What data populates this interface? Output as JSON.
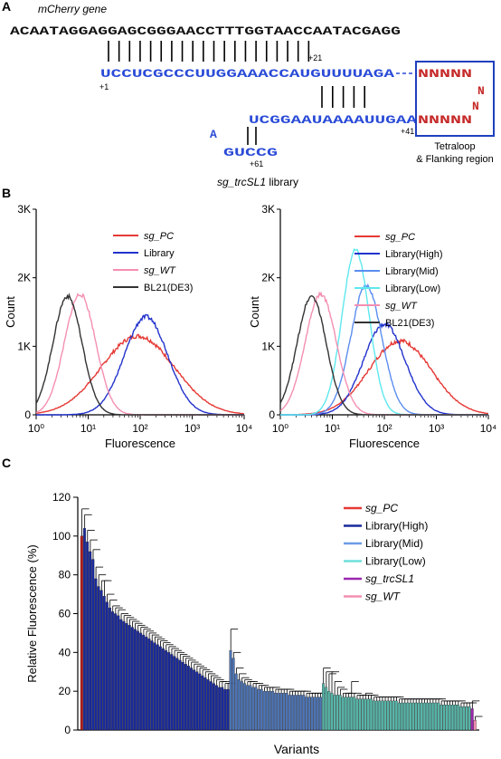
{
  "panel_a": {
    "panel_label": "A",
    "gene_label": "mCherry gene",
    "dna_seq": "ACAATAGGAGGAGCGGGAACCTTTGGTAACCAATACGAGG",
    "rna_top": "UCCUCGCCCUUGGAAACCAUGUUUUAGA",
    "rna_mid": "UCGGAAUAAAAUUGAA",
    "stem_a": "A",
    "stem_bottom": "GUCCG",
    "n_top": "NNNNN",
    "n_mid": "NNNNN",
    "n_vertical": [
      "N",
      "N"
    ],
    "pos_1": "+1",
    "pos_21": "+21",
    "pos_41": "+41",
    "pos_61": "+61",
    "box_label_1": "Tetraloop",
    "box_label_2": "& Flanking region",
    "library_name": "sg_trcSL1",
    "library_suffix": " library",
    "colors": {
      "dna": "#111111",
      "rna": "#2a4bd7",
      "n": "#c62828",
      "box": "#1f3fbf"
    }
  },
  "panel_b": {
    "panel_label": "B",
    "chart_data": [
      {
        "type": "line",
        "x_scale": "log",
        "xlabel": "Fluorescence",
        "ylabel": "Count",
        "xlim": [
          1,
          10000
        ],
        "ylim": [
          0,
          3000
        ],
        "x_ticks": [
          "10⁰",
          "10¹",
          "10²",
          "10³",
          "10⁴"
        ],
        "y_ticks": [
          "0",
          "1K",
          "2K",
          "3K"
        ],
        "legend_position": "top-right",
        "series": [
          {
            "name": "sg_PC",
            "italic": true,
            "color": "#e53935",
            "peak_x": 90,
            "peak_y": 1150,
            "width": 0.7
          },
          {
            "name": "Library",
            "italic": false,
            "color": "#2233cc",
            "peak_x": 130,
            "peak_y": 1430,
            "width": 0.42
          },
          {
            "name": "sg_WT",
            "italic": true,
            "color": "#f48fb1",
            "peak_x": 7,
            "peak_y": 1760,
            "width": 0.3
          },
          {
            "name": "BL21(DE3)",
            "italic": false,
            "color": "#333333",
            "peak_x": 4,
            "peak_y": 1730,
            "width": 0.28
          }
        ]
      },
      {
        "type": "line",
        "x_scale": "log",
        "xlabel": "Fluorescence",
        "ylabel": "Count",
        "xlim": [
          1,
          10000
        ],
        "ylim": [
          0,
          3000
        ],
        "x_ticks": [
          "10⁰",
          "10¹",
          "10²",
          "10³",
          "10⁴"
        ],
        "y_ticks": [
          "0",
          "1K",
          "2K",
          "3K"
        ],
        "legend_position": "top-right",
        "series": [
          {
            "name": "sg_PC",
            "italic": true,
            "color": "#e53935",
            "peak_x": 200,
            "peak_y": 1080,
            "width": 0.6
          },
          {
            "name": "Library(High)",
            "italic": false,
            "color": "#2233cc",
            "peak_x": 100,
            "peak_y": 1320,
            "width": 0.4
          },
          {
            "name": "Library(Mid)",
            "italic": false,
            "color": "#5b8def",
            "peak_x": 45,
            "peak_y": 1880,
            "width": 0.3
          },
          {
            "name": "Library(Low)",
            "italic": false,
            "color": "#5ee8ee",
            "peak_x": 28,
            "peak_y": 2400,
            "width": 0.26
          },
          {
            "name": "sg_WT",
            "italic": true,
            "color": "#f48fb1",
            "peak_x": 6,
            "peak_y": 1760,
            "width": 0.3
          },
          {
            "name": "BL21(DE3)",
            "italic": false,
            "color": "#333333",
            "peak_x": 4,
            "peak_y": 1730,
            "width": 0.28
          }
        ]
      }
    ]
  },
  "panel_c": {
    "panel_label": "C",
    "chart_data": {
      "type": "bar",
      "xlabel": "Variants",
      "ylabel": "Relative Fluorescence (%)",
      "ylim": [
        0,
        120
      ],
      "y_ticks": [
        "0",
        "20",
        "40",
        "60",
        "80",
        "100",
        "120"
      ],
      "legend_position": "top-right",
      "legend": [
        {
          "name": "sg_PC",
          "italic": true,
          "color": "#e53935"
        },
        {
          "name": "Library(High)",
          "italic": false,
          "color": "#1a2a9c"
        },
        {
          "name": "Library(Mid)",
          "italic": false,
          "color": "#6b9be6"
        },
        {
          "name": "Library(Low)",
          "italic": false,
          "color": "#6fe0dc"
        },
        {
          "name": "sg_trcSL1",
          "italic": true,
          "color": "#9c27b0"
        },
        {
          "name": "sg_WT",
          "italic": true,
          "color": "#f48fb1"
        }
      ],
      "groups": [
        {
          "name": "sg_PC",
          "color": "#b71c1c",
          "values": [
            100
          ],
          "errors": [
            14
          ]
        },
        {
          "name": "Library(High)",
          "color": "#1a2a9c",
          "values": [
            104,
            97,
            92,
            88,
            78,
            74,
            72,
            69,
            66,
            63,
            61,
            60,
            59,
            57,
            56,
            55,
            54,
            53,
            52,
            51,
            50,
            49,
            48,
            47,
            46,
            45,
            44,
            43,
            42,
            41,
            40,
            39,
            38,
            37,
            36,
            35,
            34,
            33,
            32,
            31,
            30,
            29,
            28,
            27,
            26,
            25,
            24,
            23,
            22,
            22,
            21,
            21
          ],
          "errors": [
            7,
            6,
            6,
            5,
            6,
            6,
            5,
            8,
            4,
            4,
            3,
            3,
            3,
            3,
            3,
            3,
            3,
            3,
            3,
            3,
            3,
            3,
            3,
            3,
            3,
            3,
            3,
            3,
            3,
            3,
            3,
            3,
            3,
            3,
            3,
            3,
            3,
            3,
            3,
            3,
            3,
            3,
            3,
            3,
            3,
            3,
            3,
            3,
            3,
            3,
            3,
            3
          ]
        },
        {
          "name": "Library(Mid)",
          "color": "#4c74b5",
          "values": [
            41,
            37,
            29,
            26,
            25,
            24,
            23,
            23,
            22,
            22,
            21,
            21,
            20,
            20,
            20,
            20,
            19,
            19,
            19,
            19,
            19,
            18,
            18,
            18,
            18,
            18,
            18,
            17,
            17,
            17,
            17,
            17,
            17
          ],
          "errors": [
            11,
            3,
            3,
            3,
            2,
            2,
            2,
            2,
            2,
            2,
            2,
            2,
            2,
            2,
            2,
            2,
            2,
            2,
            2,
            2,
            2,
            2,
            2,
            2,
            2,
            2,
            2,
            2,
            2,
            2,
            2,
            2,
            2
          ]
        },
        {
          "name": "Library(Low)",
          "color": "#56b5a8",
          "values": [
            24,
            22,
            20,
            19,
            18,
            18,
            18,
            17,
            17,
            17,
            17,
            17,
            16,
            16,
            16,
            16,
            16,
            16,
            15,
            15,
            15,
            15,
            15,
            15,
            15,
            15,
            15,
            14,
            14,
            14,
            14,
            14,
            14,
            14,
            14,
            14,
            14,
            14,
            14,
            14,
            14,
            14,
            13,
            13,
            13,
            13,
            13,
            13,
            13,
            12,
            12,
            12,
            12
          ],
          "errors": [
            8,
            8,
            9,
            11,
            7,
            4,
            3,
            2,
            2,
            2,
            8,
            2,
            2,
            2,
            2,
            3,
            2,
            2,
            2,
            2,
            2,
            2,
            2,
            2,
            2,
            2,
            2,
            2,
            2,
            2,
            2,
            2,
            2,
            2,
            2,
            2,
            2,
            2,
            2,
            2,
            2,
            2,
            2,
            2,
            2,
            2,
            2,
            2,
            2,
            2,
            2,
            2,
            2
          ]
        },
        {
          "name": "sg_trcSL1",
          "color": "#9c27b0",
          "values": [
            11
          ],
          "errors": [
            4
          ]
        },
        {
          "name": "sg_WT",
          "color": "#f48fb1",
          "values": [
            5
          ],
          "errors": [
            2
          ]
        }
      ]
    }
  }
}
